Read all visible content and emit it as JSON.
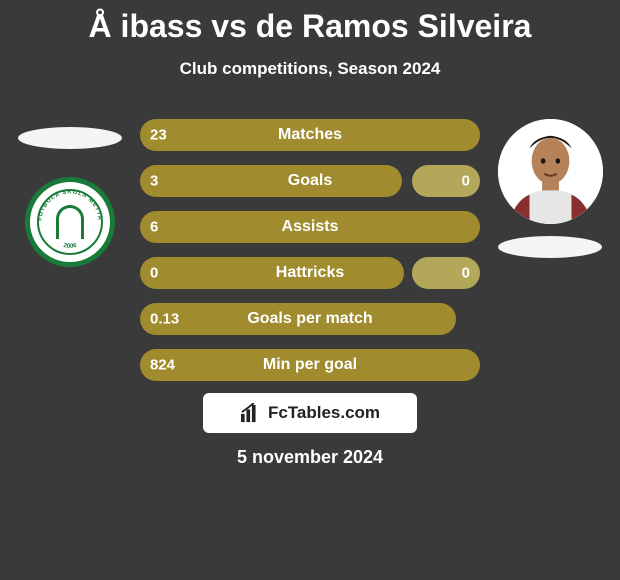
{
  "title": "Å ibass vs de Ramos Silveira",
  "subtitle": "Club competitions, Season 2024",
  "footer_brand": "FcTables.com",
  "date": "5 november 2024",
  "colors": {
    "background": "#3a3a3a",
    "bar_primary": "#a08c2e",
    "bar_secondary": "#b3a759",
    "text": "#ffffff",
    "badge_green": "#1a7a3a",
    "white": "#ffffff"
  },
  "left_player": {
    "avatar_present": false
  },
  "right_player": {
    "avatar_present": true
  },
  "bars": {
    "full_width": 340,
    "min_cap": 68
  },
  "stats": [
    {
      "name": "Matches",
      "left_val": "23",
      "right_val": "",
      "left_w": 340,
      "right_w": 0
    },
    {
      "name": "Goals",
      "left_val": "3",
      "right_val": "0",
      "left_w": 262,
      "right_w": 68
    },
    {
      "name": "Assists",
      "left_val": "6",
      "right_val": "",
      "left_w": 340,
      "right_w": 0
    },
    {
      "name": "Hattricks",
      "left_val": "0",
      "right_val": "0",
      "left_w": 264,
      "right_w": 68
    },
    {
      "name": "Goals per match",
      "left_val": "0.13",
      "right_val": "",
      "left_w": 316,
      "right_w": 0
    },
    {
      "name": "Min per goal",
      "left_val": "824",
      "right_val": "",
      "left_w": 340,
      "right_w": 0
    }
  ]
}
